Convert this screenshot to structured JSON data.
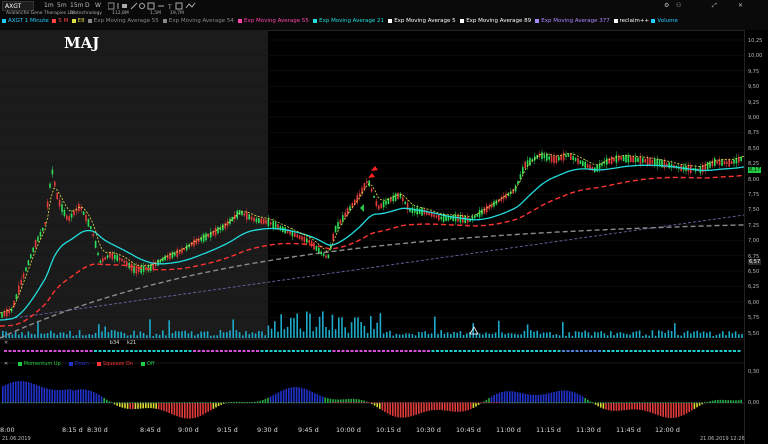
{
  "toolbar": {
    "symbol": "AXGT",
    "company": "Avalanche Gene Therapies Ltd",
    "sector": "Biotechnology",
    "stat1": "112,8M",
    "stat2": "1,5M",
    "stat3": "19,7M",
    "timeframes": [
      "1m",
      "5m",
      "15m",
      "D",
      "W"
    ],
    "indicators": [
      {
        "label": "AXGT 1 Minute",
        "color": "#22ccff"
      },
      {
        "label": "5 M",
        "color": "#ff4444"
      },
      {
        "label": "E8",
        "color": "#dddd44"
      },
      {
        "label": "Exp Moving Average 55",
        "color": "#888888"
      },
      {
        "label": "Exp Moving Average 54",
        "color": "#888888"
      },
      {
        "label": "Exp Moving Average 55",
        "color": "#ff44aa"
      },
      {
        "label": "Exp Moving Average 21",
        "color": "#22dddd"
      },
      {
        "label": "Exp Moving Average 5",
        "color": "#ffffff"
      },
      {
        "label": "Exp Moving Average 89",
        "color": "#ffffff"
      },
      {
        "label": "Exp Moving Average 377",
        "color": "#aa88ff"
      },
      {
        "label": "reclaim++",
        "color": "#ffffff"
      },
      {
        "label": "Volume",
        "color": "#22ccff"
      }
    ]
  },
  "annotation": "MAJ",
  "price_axis": [
    "10,25",
    "10,00",
    "9,75",
    "9,50",
    "9,25",
    "9,00",
    "8,75",
    "8,50",
    "8,25",
    "8,00",
    "7,75",
    "7,50",
    "7,25",
    "7,00",
    "6,75",
    "6,50",
    "6,25",
    "6,00",
    "5,75",
    "5,50"
  ],
  "price_markers": {
    "current": "8,17",
    "prior": "6,57",
    "osc_top": "0,30",
    "osc_mid": "0,00"
  },
  "time_axis": [
    "8:00",
    "8:15 d",
    "8:30 d",
    "8:45 d",
    "9:00 d",
    "9:15 d",
    "9:30 d",
    "9:45 d",
    "10:00 d",
    "10:15 d",
    "10:30 d",
    "10:45 d",
    "11:00 d",
    "11:15 d",
    "11:30 d",
    "11:45 d",
    "12:00 d"
  ],
  "middle_legend": {
    "label1": "b34",
    "label2": "k21"
  },
  "oscillator_legend": {
    "items": [
      {
        "label": "Momentum Up",
        "color": "#22cc44"
      },
      {
        "label": "Down",
        "color": "#2233cc"
      },
      {
        "label": "Squeeze On",
        "color": "#ff3333"
      },
      {
        "label": "Off",
        "color": "#22cc44"
      }
    ]
  },
  "footer": {
    "left": "21.06.2019",
    "right": "21.06.2019 12:26"
  },
  "colors": {
    "ema_cyan": "#22dddd",
    "ema_red": "#ff3333",
    "ema_gray": "#9a9a9a",
    "ema_violet": "#7a6fb0",
    "premarket_bg": "#1b1b1b"
  }
}
